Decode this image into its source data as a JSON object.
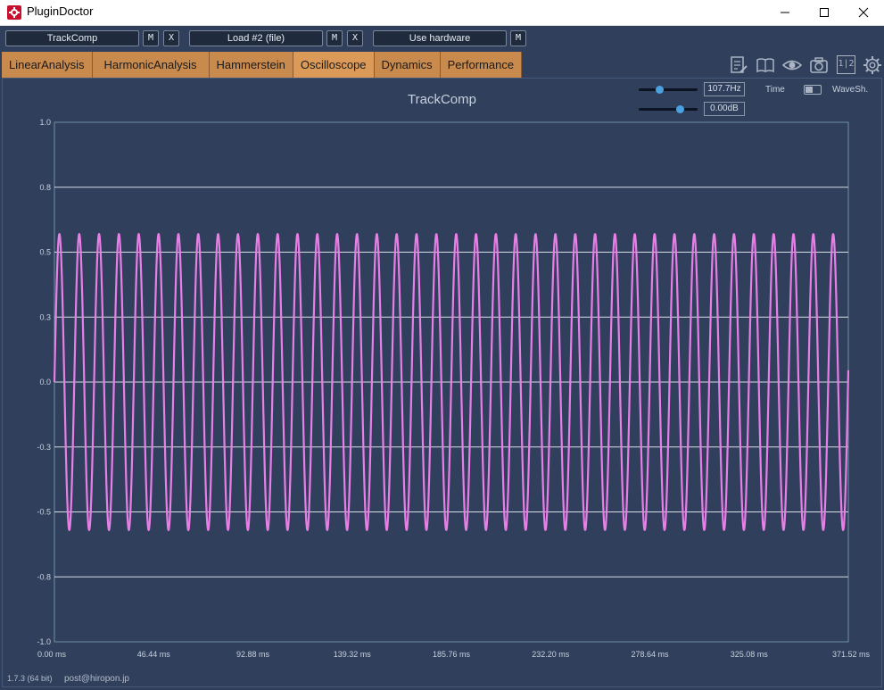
{
  "window": {
    "title": "PluginDoctor",
    "minimize_icon": "minimize-icon",
    "maximize_icon": "maximize-icon",
    "close_icon": "close-icon"
  },
  "slots": [
    {
      "name": "TrackComp",
      "m_label": "M",
      "x_label": "X"
    },
    {
      "name": "Load #2 (file)",
      "m_label": "M",
      "x_label": "X"
    },
    {
      "name": "Use hardware",
      "m_label": "M"
    }
  ],
  "tabs": [
    {
      "label": "LinearAnalysis",
      "active": false
    },
    {
      "label": "HarmonicAnalysis",
      "active": false
    },
    {
      "label": "Hammerstein",
      "active": false
    },
    {
      "label": "Oscilloscope",
      "active": true
    },
    {
      "label": "Dynamics",
      "active": false
    },
    {
      "label": "Performance",
      "active": false
    }
  ],
  "toolbar_icons": [
    "notes-icon",
    "book-icon",
    "eye-icon",
    "camera-icon",
    "split-1-2-icon",
    "gear-icon"
  ],
  "split_label": "1|2",
  "controls": {
    "frequency": {
      "value": "107.7Hz",
      "level": 0.35
    },
    "gain": {
      "value": "0.00dB",
      "level": 0.7
    },
    "time_label": "Time",
    "wave_label": "WaveSh."
  },
  "chart_data": {
    "type": "line",
    "title": "TrackComp",
    "xlabel": "",
    "ylabel": "",
    "x_unit": "ms",
    "xlim": [
      0,
      371.52
    ],
    "ylim": [
      -1.0,
      1.0
    ],
    "y_ticks": [
      "1.0",
      "0.8",
      "0.5",
      "0.3",
      "0.0",
      "-0.3",
      "-0.5",
      "-0.8",
      "-1.0"
    ],
    "x_ticks": [
      "0.00 ms",
      "46.44 ms",
      "92.88 ms",
      "139.32 ms",
      "185.76 ms",
      "232.20 ms",
      "278.64 ms",
      "325.08 ms",
      "371.52 ms"
    ],
    "grid": true,
    "series": [
      {
        "frequency_hz": 107.7,
        "amplitude": 0.57,
        "color": "#e87fe6"
      }
    ]
  },
  "status": {
    "version": "1.7.3 (64 bit)",
    "email": "post@hiropon.jp"
  }
}
